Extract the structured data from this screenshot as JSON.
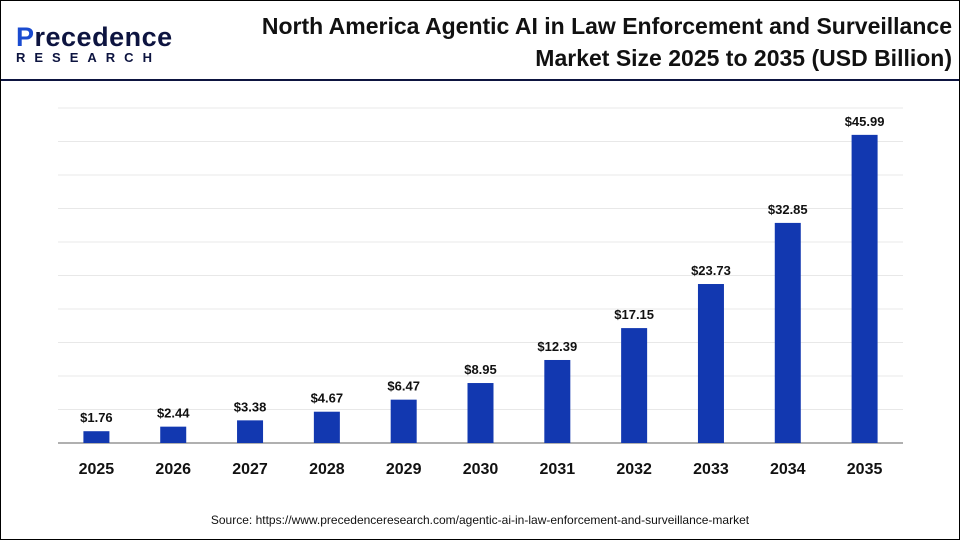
{
  "logo": {
    "line1_a": "P",
    "line1_b": "recedence",
    "line2": "RESEARCH"
  },
  "title_line1": "North America Agentic AI in Law Enforcement and Surveillance",
  "title_line2": "Market Size 2025 to 2035 (USD Billion)",
  "source": "Source: https://www.precedenceresearch.com/agentic-ai-in-law-enforcement-and-surveillance-market",
  "chart_data": {
    "type": "bar",
    "categories": [
      "2025",
      "2026",
      "2027",
      "2028",
      "2029",
      "2030",
      "2031",
      "2032",
      "2033",
      "2034",
      "2035"
    ],
    "values": [
      1.76,
      2.44,
      3.38,
      4.67,
      6.47,
      8.95,
      12.39,
      17.15,
      23.73,
      32.85,
      45.99
    ],
    "data_labels": [
      "$1.76",
      "$2.44",
      "$3.38",
      "$4.67",
      "$6.47",
      "$8.95",
      "$12.39",
      "$17.15",
      "$23.73",
      "$32.85",
      "$45.99"
    ],
    "ylim": [
      0,
      50
    ],
    "grid": true,
    "bar_color": "#1238b0",
    "xlabel": "",
    "ylabel": ""
  }
}
